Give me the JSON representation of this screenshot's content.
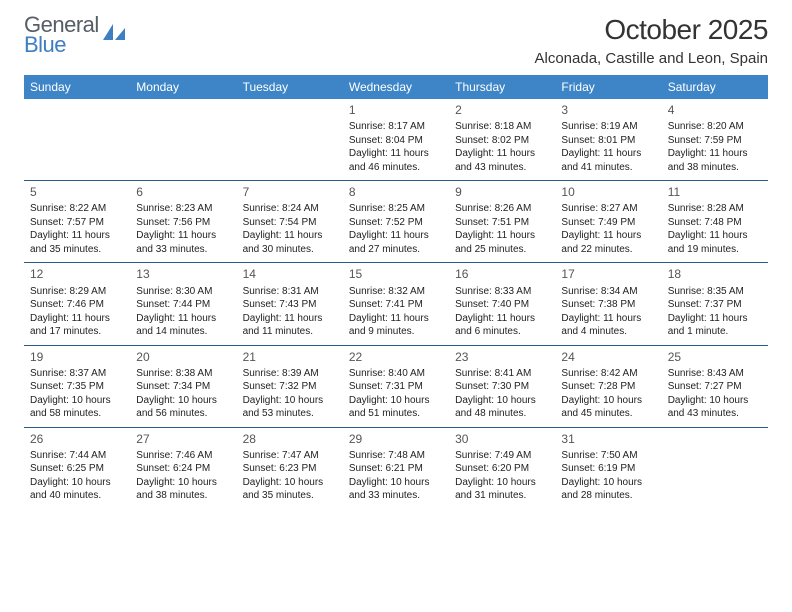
{
  "brand": {
    "word1": "General",
    "word2": "Blue"
  },
  "title": "October 2025",
  "location": "Alconada, Castille and Leon, Spain",
  "colors": {
    "header_bg": "#3d85c6",
    "header_text": "#ffffff",
    "row_divider": "#2a5a8a",
    "brand_gray": "#555d66",
    "brand_blue": "#3d7fc2",
    "text": "#222222",
    "daynum": "#555555",
    "page_bg": "#ffffff"
  },
  "typography": {
    "title_fontsize": 28,
    "location_fontsize": 15,
    "header_fontsize": 12,
    "cell_fontsize": 10,
    "daynum_fontsize": 12
  },
  "weekdays": [
    "Sunday",
    "Monday",
    "Tuesday",
    "Wednesday",
    "Thursday",
    "Friday",
    "Saturday"
  ],
  "weeks": [
    [
      null,
      null,
      null,
      {
        "n": "1",
        "sr": "Sunrise: 8:17 AM",
        "ss": "Sunset: 8:04 PM",
        "dl": "Daylight: 11 hours and 46 minutes."
      },
      {
        "n": "2",
        "sr": "Sunrise: 8:18 AM",
        "ss": "Sunset: 8:02 PM",
        "dl": "Daylight: 11 hours and 43 minutes."
      },
      {
        "n": "3",
        "sr": "Sunrise: 8:19 AM",
        "ss": "Sunset: 8:01 PM",
        "dl": "Daylight: 11 hours and 41 minutes."
      },
      {
        "n": "4",
        "sr": "Sunrise: 8:20 AM",
        "ss": "Sunset: 7:59 PM",
        "dl": "Daylight: 11 hours and 38 minutes."
      }
    ],
    [
      {
        "n": "5",
        "sr": "Sunrise: 8:22 AM",
        "ss": "Sunset: 7:57 PM",
        "dl": "Daylight: 11 hours and 35 minutes."
      },
      {
        "n": "6",
        "sr": "Sunrise: 8:23 AM",
        "ss": "Sunset: 7:56 PM",
        "dl": "Daylight: 11 hours and 33 minutes."
      },
      {
        "n": "7",
        "sr": "Sunrise: 8:24 AM",
        "ss": "Sunset: 7:54 PM",
        "dl": "Daylight: 11 hours and 30 minutes."
      },
      {
        "n": "8",
        "sr": "Sunrise: 8:25 AM",
        "ss": "Sunset: 7:52 PM",
        "dl": "Daylight: 11 hours and 27 minutes."
      },
      {
        "n": "9",
        "sr": "Sunrise: 8:26 AM",
        "ss": "Sunset: 7:51 PM",
        "dl": "Daylight: 11 hours and 25 minutes."
      },
      {
        "n": "10",
        "sr": "Sunrise: 8:27 AM",
        "ss": "Sunset: 7:49 PM",
        "dl": "Daylight: 11 hours and 22 minutes."
      },
      {
        "n": "11",
        "sr": "Sunrise: 8:28 AM",
        "ss": "Sunset: 7:48 PM",
        "dl": "Daylight: 11 hours and 19 minutes."
      }
    ],
    [
      {
        "n": "12",
        "sr": "Sunrise: 8:29 AM",
        "ss": "Sunset: 7:46 PM",
        "dl": "Daylight: 11 hours and 17 minutes."
      },
      {
        "n": "13",
        "sr": "Sunrise: 8:30 AM",
        "ss": "Sunset: 7:44 PM",
        "dl": "Daylight: 11 hours and 14 minutes."
      },
      {
        "n": "14",
        "sr": "Sunrise: 8:31 AM",
        "ss": "Sunset: 7:43 PM",
        "dl": "Daylight: 11 hours and 11 minutes."
      },
      {
        "n": "15",
        "sr": "Sunrise: 8:32 AM",
        "ss": "Sunset: 7:41 PM",
        "dl": "Daylight: 11 hours and 9 minutes."
      },
      {
        "n": "16",
        "sr": "Sunrise: 8:33 AM",
        "ss": "Sunset: 7:40 PM",
        "dl": "Daylight: 11 hours and 6 minutes."
      },
      {
        "n": "17",
        "sr": "Sunrise: 8:34 AM",
        "ss": "Sunset: 7:38 PM",
        "dl": "Daylight: 11 hours and 4 minutes."
      },
      {
        "n": "18",
        "sr": "Sunrise: 8:35 AM",
        "ss": "Sunset: 7:37 PM",
        "dl": "Daylight: 11 hours and 1 minute."
      }
    ],
    [
      {
        "n": "19",
        "sr": "Sunrise: 8:37 AM",
        "ss": "Sunset: 7:35 PM",
        "dl": "Daylight: 10 hours and 58 minutes."
      },
      {
        "n": "20",
        "sr": "Sunrise: 8:38 AM",
        "ss": "Sunset: 7:34 PM",
        "dl": "Daylight: 10 hours and 56 minutes."
      },
      {
        "n": "21",
        "sr": "Sunrise: 8:39 AM",
        "ss": "Sunset: 7:32 PM",
        "dl": "Daylight: 10 hours and 53 minutes."
      },
      {
        "n": "22",
        "sr": "Sunrise: 8:40 AM",
        "ss": "Sunset: 7:31 PM",
        "dl": "Daylight: 10 hours and 51 minutes."
      },
      {
        "n": "23",
        "sr": "Sunrise: 8:41 AM",
        "ss": "Sunset: 7:30 PM",
        "dl": "Daylight: 10 hours and 48 minutes."
      },
      {
        "n": "24",
        "sr": "Sunrise: 8:42 AM",
        "ss": "Sunset: 7:28 PM",
        "dl": "Daylight: 10 hours and 45 minutes."
      },
      {
        "n": "25",
        "sr": "Sunrise: 8:43 AM",
        "ss": "Sunset: 7:27 PM",
        "dl": "Daylight: 10 hours and 43 minutes."
      }
    ],
    [
      {
        "n": "26",
        "sr": "Sunrise: 7:44 AM",
        "ss": "Sunset: 6:25 PM",
        "dl": "Daylight: 10 hours and 40 minutes."
      },
      {
        "n": "27",
        "sr": "Sunrise: 7:46 AM",
        "ss": "Sunset: 6:24 PM",
        "dl": "Daylight: 10 hours and 38 minutes."
      },
      {
        "n": "28",
        "sr": "Sunrise: 7:47 AM",
        "ss": "Sunset: 6:23 PM",
        "dl": "Daylight: 10 hours and 35 minutes."
      },
      {
        "n": "29",
        "sr": "Sunrise: 7:48 AM",
        "ss": "Sunset: 6:21 PM",
        "dl": "Daylight: 10 hours and 33 minutes."
      },
      {
        "n": "30",
        "sr": "Sunrise: 7:49 AM",
        "ss": "Sunset: 6:20 PM",
        "dl": "Daylight: 10 hours and 31 minutes."
      },
      {
        "n": "31",
        "sr": "Sunrise: 7:50 AM",
        "ss": "Sunset: 6:19 PM",
        "dl": "Daylight: 10 hours and 28 minutes."
      },
      null
    ]
  ]
}
